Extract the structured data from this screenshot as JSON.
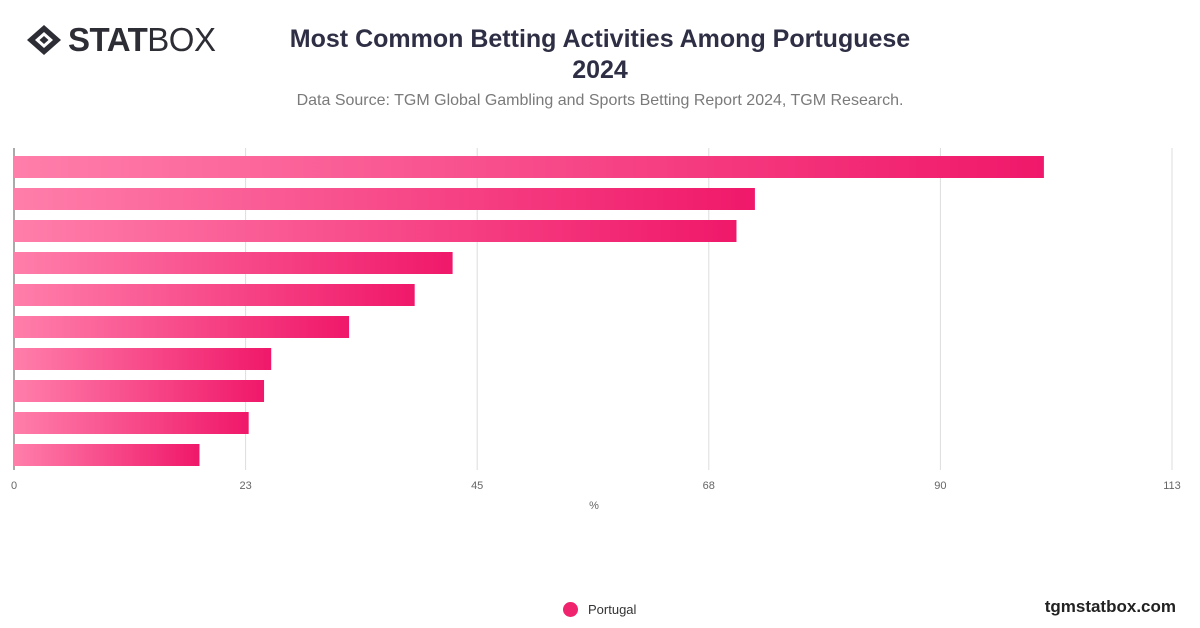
{
  "logo": {
    "text_bold": "STAT",
    "text_light": "BOX"
  },
  "header": {
    "title_line1": "Most Common Betting Activities Among Portuguese",
    "title_line2": "2024",
    "subtitle": "Data Source: TGM Global Gambling and Sports Betting Report 2024, TGM Research."
  },
  "footer": {
    "brand": "tgmstatbox.com"
  },
  "colors": {
    "bar_start": "#ff7eaa",
    "bar_end": "#f0186a",
    "grid": "#dddddd",
    "legend": "#f0246e"
  },
  "chart_data": {
    "type": "bar",
    "orientation": "horizontal",
    "title": "Most Common Betting Activities Among Portuguese 2024",
    "subtitle": "Data Source: TGM Global Gambling and Sports Betting Report 2024, TGM Research.",
    "xlabel": "%",
    "ylabel": "",
    "xlim": [
      0,
      113
    ],
    "xticks": [
      "0",
      "23",
      "45",
      "68",
      "90",
      "113"
    ],
    "grid": true,
    "legend_position": "bottom-center",
    "series": [
      {
        "name": "Portugal",
        "values": [
          100.5,
          72.3,
          70.5,
          42.8,
          39.1,
          32.7,
          25.1,
          24.4,
          22.9,
          18.1
        ]
      }
    ]
  }
}
